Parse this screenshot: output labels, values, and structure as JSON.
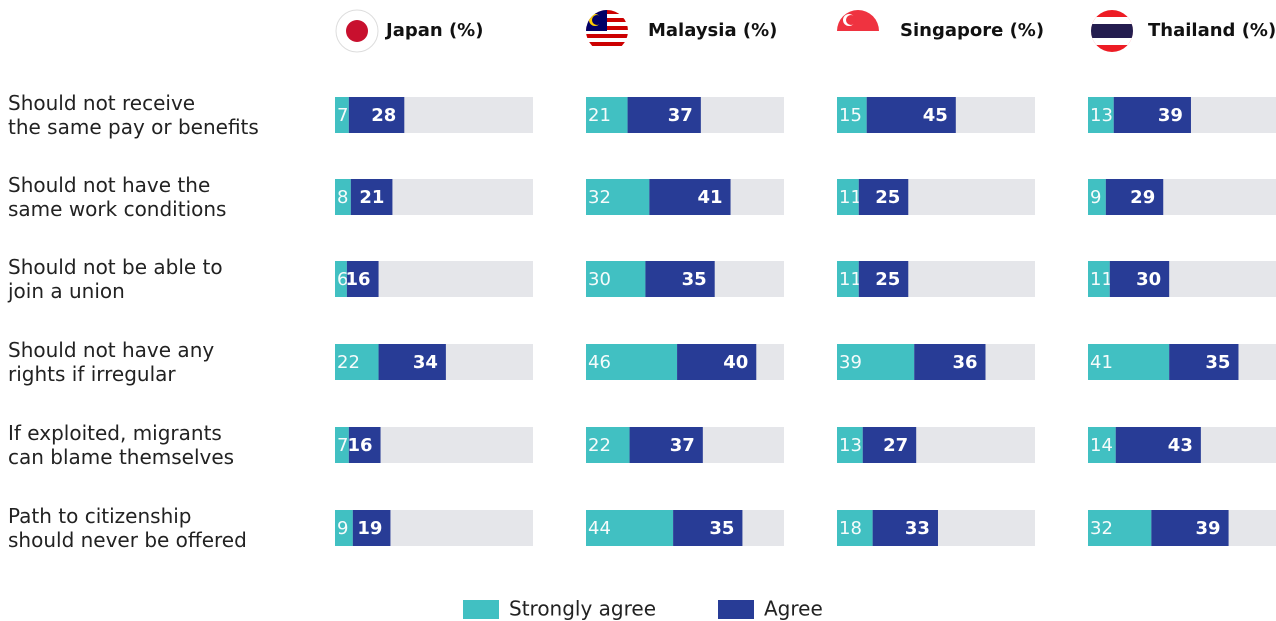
{
  "chart_data": {
    "type": "bar",
    "orientation": "horizontal",
    "stacked": true,
    "categories": [
      "Should not receive\nthe same pay or benefits",
      "Should not have the\nsame work conditions",
      "Should not be able to\njoin a union",
      "Should not have any\nrights if irregular",
      "If exploited, migrants\ncan blame themselves",
      "Path to citizenship\nshould never be offered"
    ],
    "panels": [
      "Japan (%)",
      "Malaysia (%)",
      "Singapore (%)",
      "Thailand (%)"
    ],
    "xlim": [
      0,
      100
    ],
    "series": [
      {
        "name": "Strongly agree",
        "color": "#41c0c2",
        "values": [
          [
            7,
            8,
            6,
            22,
            7,
            9
          ],
          [
            21,
            32,
            30,
            46,
            22,
            44
          ],
          [
            15,
            11,
            11,
            39,
            13,
            18
          ],
          [
            13,
            9,
            11,
            41,
            14,
            32
          ]
        ]
      },
      {
        "name": "Agree",
        "color": "#283c96",
        "values": [
          [
            28,
            21,
            16,
            34,
            16,
            19
          ],
          [
            37,
            41,
            35,
            40,
            37,
            35
          ],
          [
            45,
            25,
            25,
            36,
            27,
            33
          ],
          [
            39,
            29,
            30,
            35,
            43,
            39
          ]
        ]
      }
    ],
    "track_color": "#e5e6ea",
    "legend": "bottom"
  }
}
